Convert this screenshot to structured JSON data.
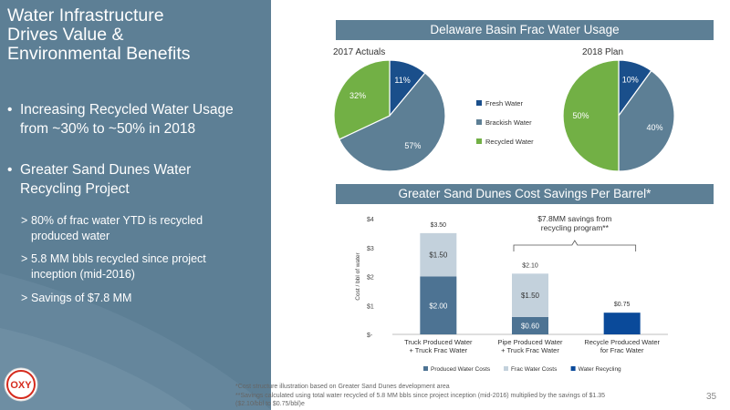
{
  "sidebar": {
    "title_lines": [
      "Water Infrastructure",
      "Drives Value &",
      "Environmental Benefits"
    ],
    "bullets": [
      {
        "lines": [
          "Increasing Recycled Water Usage",
          "from ~30% to ~50% in 2018"
        ]
      },
      {
        "lines": [
          "Greater Sand Dunes Water",
          "Recycling Project"
        ]
      }
    ],
    "sub_bullets": [
      {
        "lines": [
          "80% of frac water YTD is recycled",
          "produced water"
        ]
      },
      {
        "lines": [
          "5.8 MM bbls recycled since project",
          "inception (mid-2016)"
        ]
      },
      {
        "lines": [
          "Savings of $7.8 MM"
        ]
      }
    ],
    "bullet_marker": "•",
    "sub_marker": ">"
  },
  "logo": {
    "text": "OXY",
    "icon": "oxy-logo-icon"
  },
  "banner_top": "Delaware Basin Frac Water Usage",
  "banner_bottom": "Greater Sand Dunes Cost Savings Per Barrel*",
  "colors": {
    "fresh": "#1a4f8b",
    "brackish": "#5d7f95",
    "recycled": "#72b045",
    "produced": "#4d7393",
    "frac": "#c3d1dc",
    "recycling": "#0a4a9a",
    "banner": "#5d7f95"
  },
  "chart_data": [
    {
      "type": "pie",
      "title": "2017 Actuals",
      "labels": [
        "Fresh Water",
        "Brackish Water",
        "Recycled Water"
      ],
      "values": [
        11,
        57,
        32
      ],
      "value_labels": [
        "11%",
        "57%",
        "32%"
      ]
    },
    {
      "type": "pie",
      "title": "2018 Plan",
      "labels": [
        "Fresh Water",
        "Brackish Water",
        "Recycled Water"
      ],
      "values": [
        10,
        40,
        50
      ],
      "value_labels": [
        "10%",
        "40%",
        "50%"
      ],
      "legend": [
        "Fresh Water",
        "Brackish Water",
        "Recycled Water"
      ]
    },
    {
      "type": "bar",
      "stacked": true,
      "categories": [
        [
          "Truck Produced Water",
          "+ Truck Frac Water"
        ],
        [
          "Pipe Produced Water",
          "+ Truck Frac Water"
        ],
        [
          "Recycle Produced Water",
          "for Frac Water"
        ]
      ],
      "series": [
        {
          "name": "Produced Water Costs",
          "values": [
            2.0,
            0.6,
            0
          ],
          "labels": [
            "$2.00",
            "$0.60",
            ""
          ]
        },
        {
          "name": "Frac Water Costs",
          "values": [
            1.5,
            1.5,
            0
          ],
          "labels": [
            "$1.50",
            "$1.50",
            ""
          ]
        },
        {
          "name": "Water Recycling",
          "values": [
            0,
            0,
            0.75
          ],
          "labels": [
            "",
            "",
            ""
          ]
        }
      ],
      "totals": [
        "$3.50",
        "$2.10",
        "$0.75"
      ],
      "ylabel": "Cost / bbl of water",
      "yticks": [
        0,
        1,
        2,
        3,
        4
      ],
      "ytick_labels": [
        "$-",
        "$1",
        "$2",
        "$3",
        "$4"
      ],
      "ylim": [
        0,
        4
      ],
      "annotation": [
        "$7.8MM savings from",
        "recycling program**"
      ],
      "legend_placement": "bottom"
    }
  ],
  "footnotes": [
    "*Cost structure illustration based on Greater Sand Dunes development area",
    "**Savings calculated using total water recycled of 5.8 MM bbls since project inception (mid-2016) multiplied by the savings of $1.35",
    "($2.10/bbl to $0.75/bbl)e"
  ],
  "page_number": "35"
}
